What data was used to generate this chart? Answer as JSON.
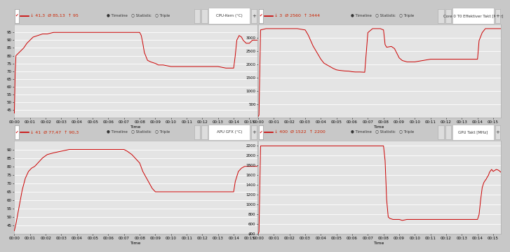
{
  "fig_bg": "#c8c8c8",
  "panel_bg": "#f0f0f0",
  "plot_bg": "#e4e4e4",
  "line_color": "#cc0000",
  "grid_color": "#ffffff",
  "charts": [
    {
      "title": "CPU-Kern (°C)",
      "stats": "↓ 41,3  Ø 85,13  ↑ 95",
      "ylim": [
        40,
        100
      ],
      "yticks": [
        45,
        50,
        55,
        60,
        65,
        70,
        75,
        80,
        85,
        90,
        95
      ],
      "data_x": [
        0,
        0.05,
        0.1,
        0.2,
        0.4,
        0.6,
        0.8,
        1.0,
        1.2,
        1.5,
        1.8,
        2.1,
        2.5,
        3.0,
        3.5,
        4.0,
        4.5,
        5.0,
        5.5,
        6.0,
        6.5,
        7.0,
        7.5,
        8.0,
        8.1,
        8.2,
        8.3,
        8.5,
        8.7,
        9.0,
        9.2,
        9.5,
        10.0,
        10.5,
        11.0,
        11.5,
        12.0,
        12.5,
        13.0,
        13.5,
        14.0,
        14.1,
        14.2,
        14.35,
        14.5,
        14.6,
        14.7,
        14.8,
        15.0,
        15.2,
        15.5
      ],
      "data_y": [
        43,
        68,
        80,
        81,
        83,
        85,
        88,
        90,
        92,
        93,
        94,
        94,
        95,
        95,
        95,
        95,
        95,
        95,
        95,
        95,
        95,
        95,
        95,
        95,
        93,
        88,
        82,
        77,
        76,
        75,
        74,
        74,
        73,
        73,
        73,
        73,
        73,
        73,
        73,
        72,
        72,
        80,
        90,
        93,
        92,
        90,
        89,
        88,
        88,
        90,
        90
      ]
    },
    {
      "title": "Core 0 T0 Effektiver Takt [MHz]",
      "stats": "↓ 3  Ø 2560  ↑ 3444",
      "ylim": [
        0,
        3500
      ],
      "yticks": [
        500,
        1000,
        1500,
        2000,
        2500,
        3000
      ],
      "data_x": [
        0,
        0.05,
        0.15,
        0.5,
        0.8,
        1.0,
        1.5,
        2.0,
        2.5,
        3.0,
        3.2,
        3.5,
        3.8,
        4.0,
        4.2,
        4.5,
        4.8,
        5.0,
        5.2,
        5.5,
        5.8,
        6.0,
        6.2,
        6.5,
        6.8,
        7.0,
        7.1,
        7.2,
        7.3,
        7.5,
        7.8,
        8.0,
        8.1,
        8.2,
        8.5,
        8.7,
        9.0,
        9.2,
        9.5,
        10.0,
        10.5,
        11.0,
        11.5,
        12.0,
        12.5,
        13.0,
        13.5,
        14.0,
        14.1,
        14.3,
        14.5,
        14.8,
        15.0,
        15.2,
        15.5
      ],
      "data_y": [
        50,
        100,
        3300,
        3350,
        3350,
        3350,
        3350,
        3350,
        3350,
        3300,
        3100,
        2700,
        2400,
        2200,
        2050,
        1950,
        1850,
        1800,
        1780,
        1760,
        1750,
        1730,
        1720,
        1720,
        1710,
        3200,
        3250,
        3300,
        3350,
        3350,
        3350,
        3300,
        2750,
        2650,
        2680,
        2600,
        2250,
        2150,
        2100,
        2100,
        2150,
        2200,
        2200,
        2200,
        2200,
        2200,
        2200,
        2200,
        2900,
        3200,
        3350,
        3350,
        3350,
        3350,
        3350
      ]
    },
    {
      "title": "APU GFX (°C)",
      "stats": "↓ 41  Ø 77,47  ↑ 90,3",
      "ylim": [
        40,
        95
      ],
      "yticks": [
        45,
        50,
        55,
        60,
        65,
        70,
        75,
        80,
        85,
        90
      ],
      "data_x": [
        0,
        0.1,
        0.3,
        0.5,
        0.7,
        0.9,
        1.1,
        1.3,
        1.5,
        1.8,
        2.1,
        2.5,
        3.0,
        3.5,
        4.0,
        4.5,
        5.0,
        5.5,
        6.0,
        6.5,
        7.0,
        7.2,
        7.5,
        7.8,
        8.0,
        8.2,
        8.5,
        8.8,
        9.0,
        9.5,
        10.0,
        10.5,
        11.0,
        11.5,
        12.0,
        12.5,
        13.0,
        13.5,
        14.0,
        14.1,
        14.3,
        14.5,
        14.7,
        15.0,
        15.2,
        15.5
      ],
      "data_y": [
        42,
        46,
        56,
        66,
        73,
        77,
        79,
        80,
        82,
        85,
        87,
        88,
        89,
        90,
        90,
        90,
        90,
        90,
        90,
        90,
        90,
        89,
        87,
        84,
        82,
        77,
        72,
        67,
        65,
        65,
        65,
        65,
        65,
        65,
        65,
        65,
        65,
        65,
        65,
        71,
        77,
        79,
        80,
        80,
        80,
        80
      ]
    },
    {
      "title": "GPU Takt [MHz]",
      "stats": "↓ 400  Ø 1522  ↑ 2200",
      "ylim": [
        400,
        2300
      ],
      "yticks": [
        400,
        600,
        800,
        1000,
        1200,
        1400,
        1600,
        1800,
        2000,
        2200
      ],
      "data_x": [
        0,
        0.05,
        0.15,
        0.5,
        0.8,
        1.0,
        1.5,
        2.0,
        2.5,
        3.0,
        3.5,
        4.0,
        4.5,
        5.0,
        5.5,
        6.0,
        6.5,
        7.0,
        7.5,
        8.0,
        8.1,
        8.2,
        8.3,
        8.4,
        8.6,
        8.8,
        9.0,
        9.2,
        9.5,
        10.0,
        10.5,
        11.0,
        11.5,
        12.0,
        12.5,
        13.0,
        13.5,
        14.0,
        14.1,
        14.2,
        14.3,
        14.4,
        14.5,
        14.55,
        14.6,
        14.65,
        14.7,
        14.75,
        14.8,
        14.85,
        14.9,
        14.95,
        15.0,
        15.1,
        15.2,
        15.3,
        15.4,
        15.5
      ],
      "data_y": [
        400,
        450,
        2200,
        2200,
        2200,
        2200,
        2200,
        2200,
        2200,
        2200,
        2200,
        2200,
        2200,
        2200,
        2200,
        2200,
        2200,
        2200,
        2200,
        2200,
        1900,
        1100,
        750,
        720,
        700,
        700,
        700,
        680,
        700,
        700,
        700,
        700,
        700,
        700,
        700,
        700,
        700,
        700,
        800,
        1100,
        1350,
        1450,
        1500,
        1520,
        1550,
        1580,
        1600,
        1650,
        1680,
        1700,
        1720,
        1700,
        1680,
        1700,
        1720,
        1710,
        1690,
        1660
      ]
    }
  ]
}
